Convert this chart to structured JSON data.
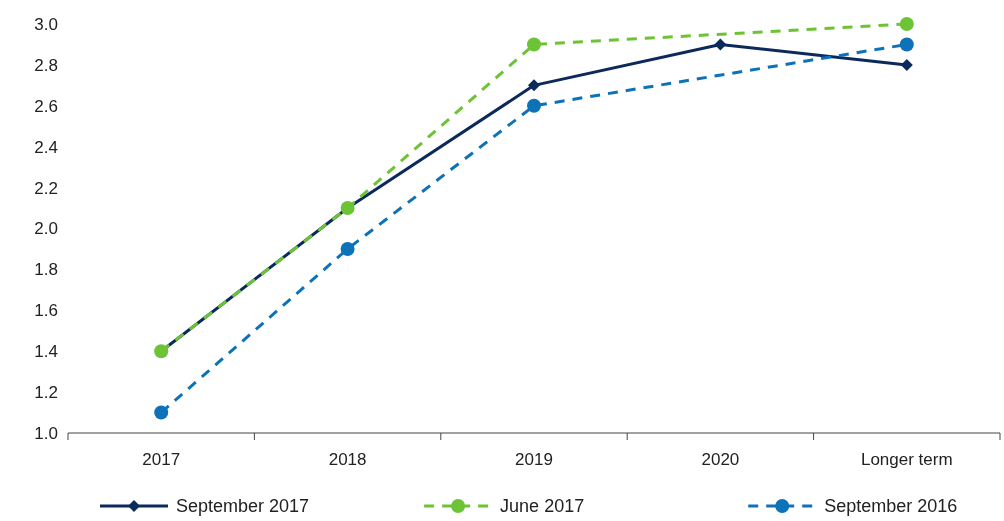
{
  "chart_data": {
    "type": "line",
    "categories": [
      "2017",
      "2018",
      "2019",
      "2020",
      "Longer term"
    ],
    "series": [
      {
        "name": "September 2017",
        "color": "#0b2a5b",
        "marker": "diamond",
        "line_style": "solid",
        "values": [
          1.4,
          2.1,
          2.7,
          2.9,
          2.8
        ]
      },
      {
        "name": "June 2017",
        "color": "#6cc335",
        "marker": "circle",
        "line_style": "dashed",
        "values": [
          1.4,
          2.1,
          2.9,
          null,
          3.0
        ]
      },
      {
        "name": "September 2016",
        "color": "#0d72b7",
        "marker": "circle",
        "line_style": "dashed",
        "values": [
          1.1,
          1.9,
          2.6,
          null,
          2.9
        ]
      }
    ],
    "ylim": [
      1.0,
      3.0
    ],
    "yticks": [
      {
        "value": 1.0,
        "label": "1.0"
      },
      {
        "value": 1.2,
        "label": "1.2"
      },
      {
        "value": 1.4,
        "label": "1.4"
      },
      {
        "value": 1.6,
        "label": "1.6"
      },
      {
        "value": 1.8,
        "label": "1.8"
      },
      {
        "value": 2.0,
        "label": "2.0"
      },
      {
        "value": 2.2,
        "label": "2.2"
      },
      {
        "value": 2.4,
        "label": "2.4"
      },
      {
        "value": 2.6,
        "label": "2.6"
      },
      {
        "value": 2.8,
        "label": "2.8"
      },
      {
        "value": 3.0,
        "label": "3.0"
      }
    ],
    "grid": false,
    "legend": "bottom"
  }
}
